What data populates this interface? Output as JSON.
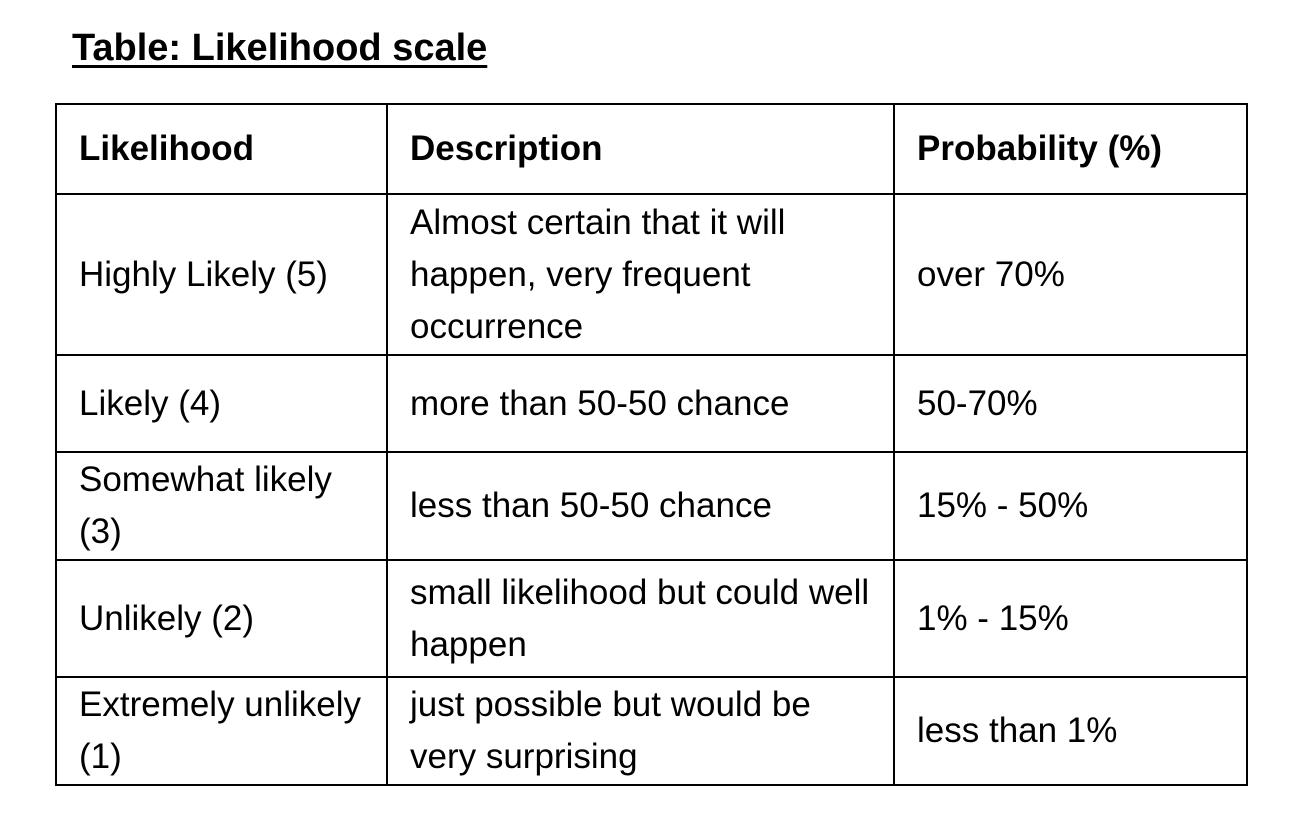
{
  "title": "Table: Likelihood scale",
  "table": {
    "headers": {
      "likelihood": "Likelihood",
      "description": "Description",
      "probability": "Probability (%)"
    },
    "rows": [
      {
        "likelihood": "Highly Likely (5)",
        "description": "Almost certain that it will happen, very frequent occurrence",
        "probability": "over 70%"
      },
      {
        "likelihood": "Likely (4)",
        "description": "more than 50-50 chance",
        "probability": "50-70%"
      },
      {
        "likelihood": "Somewhat likely (3)",
        "description": "less than 50-50 chance",
        "probability": "15% - 50%"
      },
      {
        "likelihood": "Unlikely (2)",
        "description": "small likelihood but could well happen",
        "probability": "1% - 15%"
      },
      {
        "likelihood": "Extremely unlikely (1)",
        "description": "just possible but would be very surprising",
        "probability": "less than 1%"
      }
    ]
  }
}
